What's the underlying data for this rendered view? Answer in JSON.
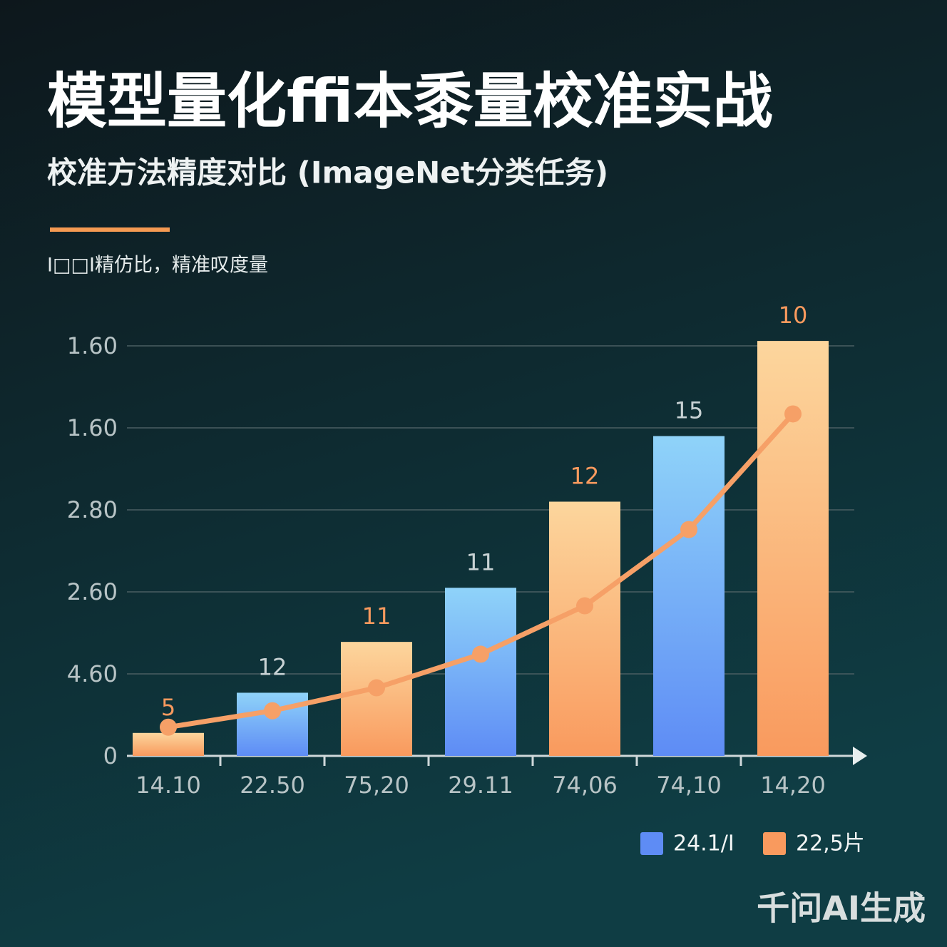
{
  "chart_data": {
    "type": "bar",
    "title": "模型量化ffi本黍量校准实战",
    "subtitle": "校准方法精度对比 (ImageNet分类任务)",
    "note": "I□□I精仿比，精准叹度量",
    "categories": [
      "14.10",
      "22.50",
      "75,20",
      "29.11",
      "74,06",
      "74,10",
      "14,20"
    ],
    "series": [
      {
        "name": "24.1/I",
        "color": "#5e8cf5",
        "color_top": "#8fd3f9",
        "values": [
          null,
          0.77,
          null,
          2.05,
          null,
          3.9,
          null
        ]
      },
      {
        "name": "22,5片",
        "color": "#f99a5e",
        "color_top": "#fcd69d",
        "values": [
          0.28,
          null,
          1.39,
          null,
          3.1,
          null,
          5.06
        ]
      }
    ],
    "bar_labels": [
      "5",
      "12",
      "11",
      "11",
      "12",
      "15",
      "10"
    ],
    "line": {
      "color": "#f6a067",
      "values": [
        0.35,
        0.55,
        0.83,
        1.24,
        1.83,
        2.76,
        4.17
      ]
    },
    "ylim": [
      0,
      5.2
    ],
    "yticks": [
      0,
      1,
      2,
      3,
      4,
      5
    ],
    "ytick_labels": [
      "0",
      "4.60",
      "2.60",
      "2.80",
      "1.60",
      "1.60"
    ],
    "grid": true,
    "watermark": "千问AI生成"
  }
}
